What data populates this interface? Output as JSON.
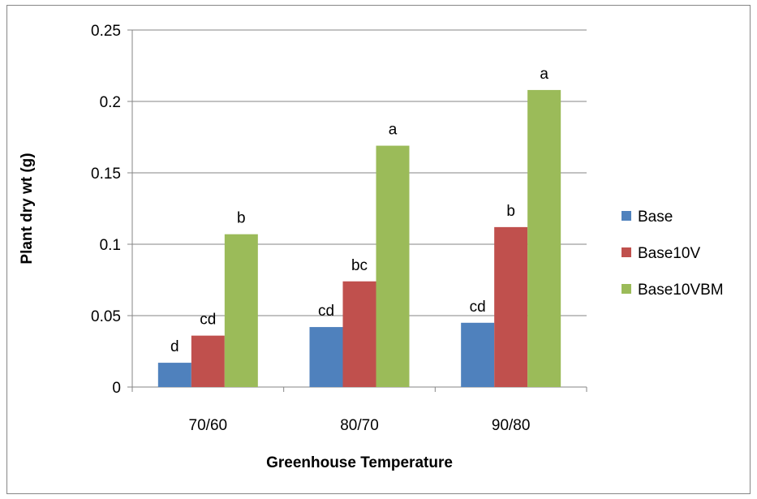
{
  "chart_data": {
    "type": "bar",
    "title": "",
    "xlabel": "Greenhouse Temperature",
    "ylabel": "Plant dry wt (g)",
    "categories": [
      "70/60",
      "80/70",
      "90/80"
    ],
    "ylim": [
      0,
      0.25
    ],
    "yticks": [
      0,
      0.05,
      0.1,
      0.15,
      0.2,
      0.25
    ],
    "ytick_labels": [
      "0",
      "0.05",
      "0.1",
      "0.15",
      "0.2",
      "0.25"
    ],
    "grid": true,
    "legend_position": "right",
    "series": [
      {
        "name": "Base",
        "color": "#4f81bd",
        "values": [
          0.017,
          0.042,
          0.045
        ],
        "labels": [
          "d",
          "cd",
          "cd"
        ]
      },
      {
        "name": "Base10V",
        "color": "#c0504d",
        "values": [
          0.036,
          0.074,
          0.112
        ],
        "labels": [
          "cd",
          "bc",
          "b"
        ]
      },
      {
        "name": "Base10VBM",
        "color": "#9bbb59",
        "values": [
          0.107,
          0.169,
          0.208
        ],
        "labels": [
          "b",
          "a",
          "a"
        ]
      }
    ]
  }
}
